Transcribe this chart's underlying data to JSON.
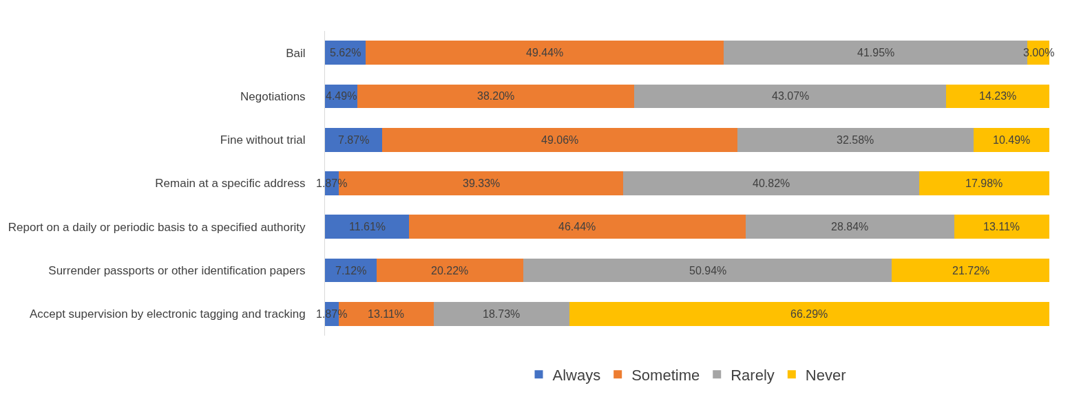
{
  "chart_data": {
    "type": "bar",
    "orientation": "horizontal",
    "stacked": true,
    "categories": [
      "Bail",
      "Negotiations",
      "Fine without trial",
      "Remain at a specific address",
      "Report on a daily or periodic basis to a specified authority",
      "Surrender passports or other identification papers",
      "Accept supervision by electronic tagging and tracking"
    ],
    "series": [
      {
        "name": "Always",
        "color": "#4472c4",
        "values": [
          5.62,
          4.49,
          7.87,
          1.87,
          11.61,
          7.12,
          1.87
        ],
        "value_labels": [
          "5.62%",
          "4.49%",
          "7.87%",
          "1.87%",
          "11.61%",
          "7.12%",
          "1.87%"
        ]
      },
      {
        "name": "Sometime",
        "color": "#ed7d31",
        "values": [
          49.44,
          38.2,
          49.06,
          39.33,
          46.44,
          20.22,
          13.11
        ],
        "value_labels": [
          "49.44%",
          "38.20%",
          "49.06%",
          "39.33%",
          "46.44%",
          "20.22%",
          "13.11%"
        ]
      },
      {
        "name": "Rarely",
        "color": "#a5a5a5",
        "values": [
          41.95,
          43.07,
          32.58,
          40.82,
          28.84,
          50.94,
          18.73
        ],
        "value_labels": [
          "41.95%",
          "43.07%",
          "32.58%",
          "40.82%",
          "28.84%",
          "50.94%",
          "18.73%"
        ]
      },
      {
        "name": "Never",
        "color": "#ffc000",
        "values": [
          3.0,
          14.23,
          10.49,
          17.98,
          13.11,
          21.72,
          66.29
        ],
        "value_labels": [
          "3.00%",
          "14.23%",
          "10.49%",
          "17.98%",
          "13.11%",
          "21.72%",
          "66.29%"
        ]
      }
    ],
    "xlim": [
      0,
      100.01
    ],
    "tick_labels": "y",
    "legend": "bottom"
  }
}
